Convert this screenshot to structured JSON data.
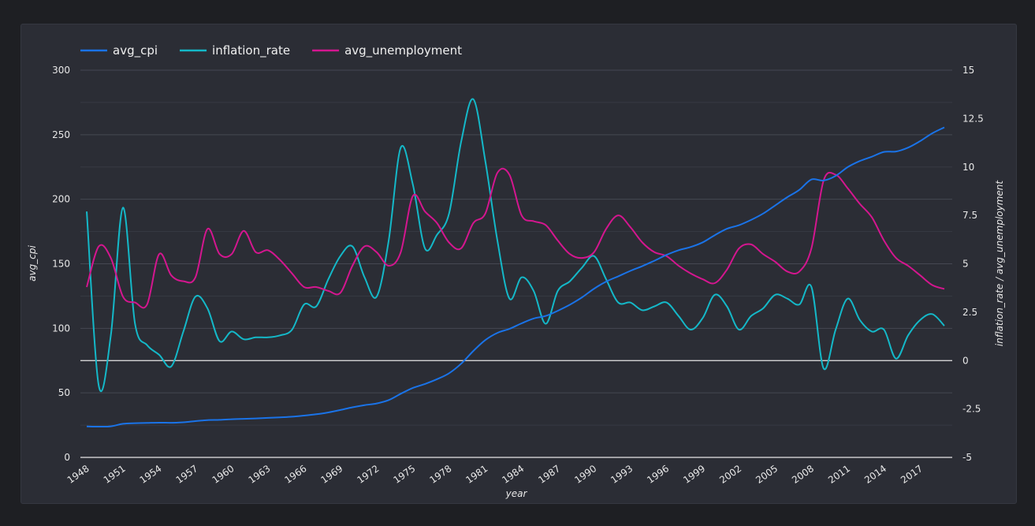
{
  "chart_data": {
    "type": "line",
    "xlabel": "year",
    "ylabel_left": "avg_cpi",
    "ylabel_right": "inflation_rate / avg_unemployment",
    "ylim_left": [
      0,
      300
    ],
    "ylim_right": [
      -5,
      15
    ],
    "yticks_left": [
      "0",
      "50",
      "100",
      "150",
      "200",
      "250",
      "300"
    ],
    "yticks_right": [
      "-5",
      "-2.5",
      "0",
      "2.5",
      "5",
      "7.5",
      "10",
      "12.5",
      "15"
    ],
    "xticks": [
      "1948",
      "1951",
      "1954",
      "1957",
      "1960",
      "1963",
      "1966",
      "1969",
      "1972",
      "1975",
      "1978",
      "1981",
      "1984",
      "1987",
      "1990",
      "1993",
      "1996",
      "1999",
      "2002",
      "2005",
      "2008",
      "2011",
      "2014",
      "2017"
    ],
    "grid": true,
    "legend_position": "top-left",
    "years": [
      1948,
      1949,
      1950,
      1951,
      1952,
      1953,
      1954,
      1955,
      1956,
      1957,
      1958,
      1959,
      1960,
      1961,
      1962,
      1963,
      1964,
      1965,
      1966,
      1967,
      1968,
      1969,
      1970,
      1971,
      1972,
      1973,
      1974,
      1975,
      1976,
      1977,
      1978,
      1979,
      1980,
      1981,
      1982,
      1983,
      1984,
      1985,
      1986,
      1987,
      1988,
      1989,
      1990,
      1991,
      1992,
      1993,
      1994,
      1995,
      1996,
      1997,
      1998,
      1999,
      2000,
      2001,
      2002,
      2003,
      2004,
      2005,
      2006,
      2007,
      2008,
      2009,
      2010,
      2011,
      2012,
      2013,
      2014,
      2015,
      2016,
      2017,
      2018,
      2019
    ],
    "series": [
      {
        "name": "avg_cpi",
        "axis": "left",
        "color": "#1a73e8",
        "values": [
          24.0,
          23.8,
          24.1,
          26.0,
          26.5,
          26.7,
          26.9,
          26.8,
          27.2,
          28.1,
          28.9,
          29.1,
          29.6,
          29.9,
          30.2,
          30.6,
          31.0,
          31.5,
          32.4,
          33.4,
          34.8,
          36.7,
          38.8,
          40.5,
          41.8,
          44.4,
          49.3,
          53.8,
          56.9,
          60.6,
          65.2,
          72.6,
          82.4,
          90.9,
          96.5,
          99.6,
          103.9,
          107.6,
          109.6,
          113.6,
          118.3,
          124.0,
          130.7,
          136.2,
          140.3,
          144.5,
          148.2,
          152.4,
          156.9,
          160.5,
          163.0,
          166.6,
          172.2,
          177.1,
          179.9,
          184.0,
          188.9,
          195.3,
          201.6,
          207.3,
          215.3,
          214.5,
          218.1,
          224.9,
          229.6,
          233.0,
          236.7,
          237.0,
          240.0,
          245.1,
          251.1,
          255.7
        ]
      },
      {
        "name": "inflation_rate",
        "axis": "right",
        "color": "#14b8c8",
        "values": [
          7.7,
          -1.3,
          1.3,
          7.9,
          1.9,
          0.8,
          0.3,
          -0.3,
          1.5,
          3.3,
          2.7,
          1.0,
          1.5,
          1.1,
          1.2,
          1.2,
          1.3,
          1.6,
          2.9,
          2.8,
          4.2,
          5.4,
          5.9,
          4.3,
          3.3,
          6.2,
          11.0,
          9.1,
          5.8,
          6.5,
          7.6,
          11.3,
          13.5,
          10.3,
          6.2,
          3.2,
          4.3,
          3.6,
          1.9,
          3.6,
          4.1,
          4.8,
          5.4,
          4.2,
          3.0,
          3.0,
          2.6,
          2.8,
          3.0,
          2.3,
          1.6,
          2.2,
          3.4,
          2.8,
          1.6,
          2.3,
          2.7,
          3.4,
          3.2,
          2.9,
          3.8,
          -0.4,
          1.6,
          3.2,
          2.1,
          1.5,
          1.6,
          0.1,
          1.3,
          2.1,
          2.4,
          1.8
        ]
      },
      {
        "name": "avg_unemployment",
        "axis": "right",
        "color": "#d4168f",
        "values": [
          3.8,
          5.9,
          5.3,
          3.3,
          3.0,
          2.9,
          5.5,
          4.4,
          4.1,
          4.3,
          6.8,
          5.5,
          5.5,
          6.7,
          5.6,
          5.7,
          5.2,
          4.5,
          3.8,
          3.8,
          3.6,
          3.5,
          4.9,
          5.9,
          5.6,
          4.9,
          5.6,
          8.5,
          7.7,
          7.1,
          6.1,
          5.8,
          7.1,
          7.6,
          9.7,
          9.6,
          7.5,
          7.2,
          7.0,
          6.2,
          5.5,
          5.3,
          5.6,
          6.8,
          7.5,
          6.9,
          6.1,
          5.6,
          5.4,
          4.9,
          4.5,
          4.2,
          4.0,
          4.7,
          5.8,
          6.0,
          5.5,
          5.1,
          4.6,
          4.6,
          5.8,
          9.3,
          9.6,
          8.9,
          8.1,
          7.4,
          6.2,
          5.3,
          4.9,
          4.4,
          3.9,
          3.7
        ]
      }
    ]
  }
}
